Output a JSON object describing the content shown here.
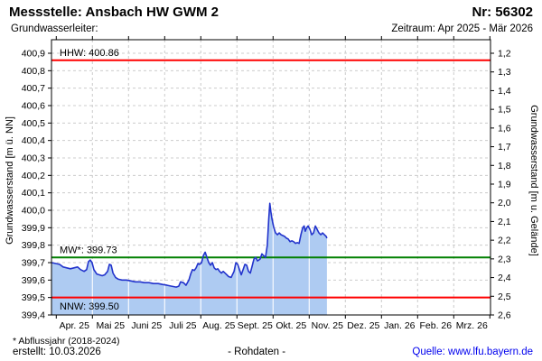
{
  "header": {
    "title": "Messstelle: Ansbach HW GWM 2",
    "number": "Nr: 56302",
    "aquifer_label": "Grundwasserleiter:",
    "period": "Zeitraum: Apr 2025 - Mär 2026"
  },
  "footer": {
    "note": "* Abflussjahr (2018-2024)",
    "created": "erstellt:  10.03.2026",
    "center": "- Rohdaten -",
    "source": "Quelle: www.lfu.bayern.de"
  },
  "chart_data": {
    "type": "area",
    "title": "",
    "x_axis": {
      "months": [
        "Apr. 25",
        "Mai 25",
        "Juni 25",
        "Juli 25",
        "Aug. 25",
        "Sept. 25",
        "Okt. 25",
        "Nov. 25",
        "Dez. 25",
        "Jan. 26",
        "Feb. 26",
        "Mrz. 26"
      ],
      "range": "Apr 2025 - Mär 2026"
    },
    "y_left": {
      "label": "Grundwasserstand [m ü. NN]",
      "min": 399.4,
      "max": 400.9,
      "step": 0.1,
      "tick_labels_top_to_bottom": [
        "400,9",
        "400,8",
        "400,7",
        "400,6",
        "400,5",
        "400,4",
        "400,3",
        "400,2",
        "400,1",
        "400,0",
        "399,9",
        "399,8",
        "399,7",
        "399,6",
        "399,5",
        "399,4"
      ]
    },
    "y_right": {
      "label": "Grundwasserstand [m u. Gelände]",
      "min": 1.2,
      "max": 2.6,
      "step": 0.1,
      "tick_labels_top_to_bottom": [
        "1,2",
        "1,3",
        "1,4",
        "1,5",
        "1,6",
        "1,7",
        "1,8",
        "1,9",
        "2,0",
        "2,1",
        "2,2",
        "2,3",
        "2,4",
        "2,5",
        "2,6"
      ]
    },
    "reference_lines": [
      {
        "name": "HHW",
        "value": 400.86,
        "label": "HHW: 400.86",
        "color": "#ff0000",
        "label_position": "above"
      },
      {
        "name": "MW",
        "value": 399.73,
        "label": "MW*: 399.73",
        "color": "#008000",
        "label_position": "above"
      },
      {
        "name": "NNW",
        "value": 399.5,
        "label": "NNW: 399.50",
        "color": "#ff0000",
        "label_position": "below"
      }
    ],
    "grid": true,
    "legend": "none",
    "series": [
      {
        "name": "Grundwasserstand Rohdaten",
        "unit": "m ü. NN",
        "x_unit": "months since 2025-04-01",
        "color_line": "#2233cc",
        "color_fill": "#aecbf2",
        "points": [
          [
            -0.13,
            399.7
          ],
          [
            -0.01,
            399.695
          ],
          [
            0.09,
            399.69
          ],
          [
            0.19,
            399.675
          ],
          [
            0.29,
            399.67
          ],
          [
            0.39,
            399.665
          ],
          [
            0.49,
            399.67
          ],
          [
            0.59,
            399.675
          ],
          [
            0.67,
            399.66
          ],
          [
            0.77,
            399.65
          ],
          [
            0.84,
            399.66
          ],
          [
            0.89,
            399.705
          ],
          [
            0.94,
            399.715
          ],
          [
            0.99,
            399.7
          ],
          [
            1.04,
            399.66
          ],
          [
            1.12,
            399.635
          ],
          [
            1.19,
            399.63
          ],
          [
            1.27,
            399.625
          ],
          [
            1.34,
            399.63
          ],
          [
            1.42,
            399.65
          ],
          [
            1.47,
            399.69
          ],
          [
            1.52,
            399.685
          ],
          [
            1.57,
            399.64
          ],
          [
            1.64,
            399.615
          ],
          [
            1.72,
            399.605
          ],
          [
            1.82,
            399.6
          ],
          [
            1.94,
            399.6
          ],
          [
            2.07,
            399.595
          ],
          [
            2.19,
            399.59
          ],
          [
            2.32,
            399.59
          ],
          [
            2.44,
            399.585
          ],
          [
            2.57,
            399.585
          ],
          [
            2.69,
            399.58
          ],
          [
            2.82,
            399.58
          ],
          [
            2.94,
            399.575
          ],
          [
            3.07,
            399.57
          ],
          [
            3.19,
            399.565
          ],
          [
            3.32,
            399.56
          ],
          [
            3.39,
            399.565
          ],
          [
            3.44,
            399.59
          ],
          [
            3.52,
            399.585
          ],
          [
            3.59,
            399.57
          ],
          [
            3.67,
            399.6
          ],
          [
            3.72,
            399.635
          ],
          [
            3.77,
            399.66
          ],
          [
            3.82,
            399.655
          ],
          [
            3.87,
            399.67
          ],
          [
            3.92,
            399.695
          ],
          [
            3.97,
            399.69
          ],
          [
            4.02,
            399.7
          ],
          [
            4.07,
            399.74
          ],
          [
            4.12,
            399.76
          ],
          [
            4.17,
            399.73
          ],
          [
            4.22,
            399.7
          ],
          [
            4.27,
            399.685
          ],
          [
            4.32,
            399.7
          ],
          [
            4.37,
            399.67
          ],
          [
            4.42,
            399.66
          ],
          [
            4.47,
            399.665
          ],
          [
            4.52,
            399.65
          ],
          [
            4.57,
            399.64
          ],
          [
            4.62,
            399.65
          ],
          [
            4.67,
            399.64
          ],
          [
            4.72,
            399.63
          ],
          [
            4.77,
            399.62
          ],
          [
            4.84,
            399.615
          ],
          [
            4.92,
            399.65
          ],
          [
            4.97,
            399.7
          ],
          [
            5.02,
            399.69
          ],
          [
            5.07,
            399.66
          ],
          [
            5.12,
            399.63
          ],
          [
            5.17,
            399.66
          ],
          [
            5.22,
            399.69
          ],
          [
            5.27,
            399.685
          ],
          [
            5.32,
            399.65
          ],
          [
            5.37,
            399.64
          ],
          [
            5.42,
            399.68
          ],
          [
            5.47,
            399.72
          ],
          [
            5.52,
            399.73
          ],
          [
            5.57,
            399.71
          ],
          [
            5.64,
            399.72
          ],
          [
            5.69,
            399.75
          ],
          [
            5.74,
            399.74
          ],
          [
            5.79,
            399.73
          ],
          [
            5.84,
            399.8
          ],
          [
            5.88,
            399.95
          ],
          [
            5.91,
            400.04
          ],
          [
            5.94,
            399.99
          ],
          [
            5.97,
            399.95
          ],
          [
            6.02,
            399.9
          ],
          [
            6.07,
            399.87
          ],
          [
            6.12,
            399.86
          ],
          [
            6.17,
            399.87
          ],
          [
            6.22,
            399.86
          ],
          [
            6.27,
            399.855
          ],
          [
            6.32,
            399.85
          ],
          [
            6.37,
            399.84
          ],
          [
            6.42,
            399.835
          ],
          [
            6.47,
            399.82
          ],
          [
            6.52,
            399.825
          ],
          [
            6.57,
            399.82
          ],
          [
            6.62,
            399.81
          ],
          [
            6.67,
            399.815
          ],
          [
            6.72,
            399.81
          ],
          [
            6.77,
            399.86
          ],
          [
            6.82,
            399.9
          ],
          [
            6.86,
            399.91
          ],
          [
            6.89,
            399.88
          ],
          [
            6.93,
            399.9
          ],
          [
            6.97,
            399.91
          ],
          [
            7.02,
            399.89
          ],
          [
            7.07,
            399.86
          ],
          [
            7.12,
            399.87
          ],
          [
            7.17,
            399.91
          ],
          [
            7.22,
            399.89
          ],
          [
            7.27,
            399.87
          ],
          [
            7.32,
            399.86
          ],
          [
            7.37,
            399.87
          ],
          [
            7.42,
            399.86
          ],
          [
            7.47,
            399.85
          ],
          [
            7.49,
            399.84
          ]
        ]
      }
    ]
  }
}
